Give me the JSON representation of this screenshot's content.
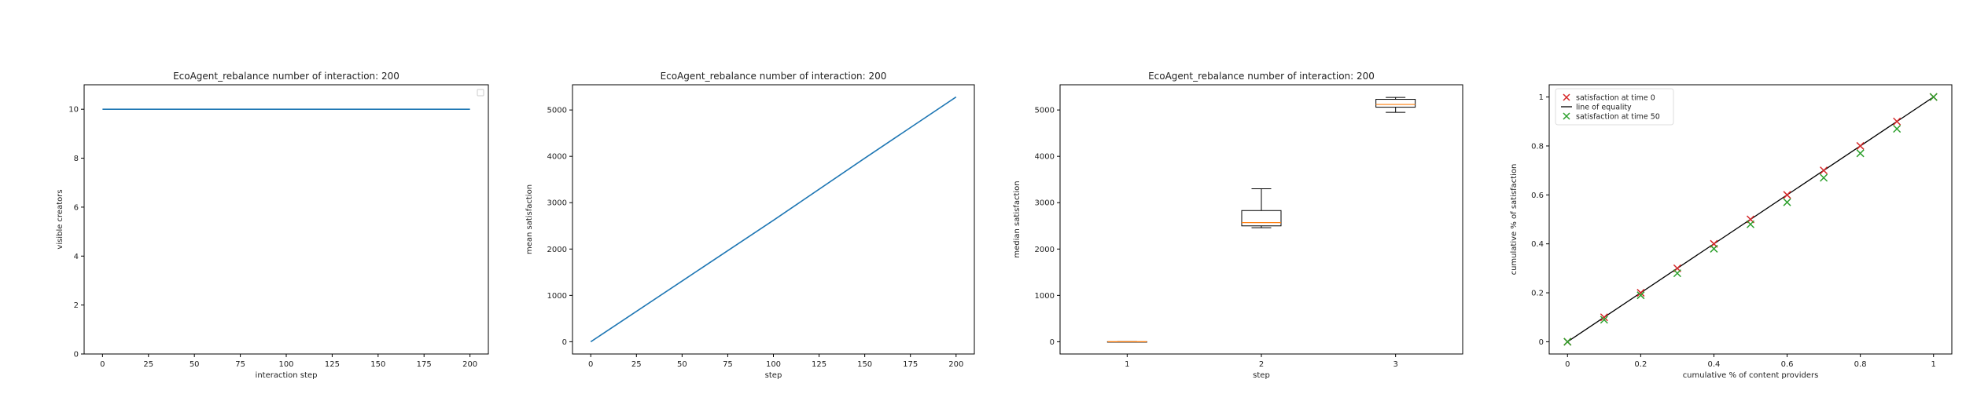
{
  "chart_data": [
    {
      "type": "line",
      "title": "EcoAgent_rebalance number of interaction: 200",
      "xlabel": "interaction step",
      "ylabel": "visible creators",
      "xlim": [
        -10,
        210
      ],
      "ylim": [
        0,
        11
      ],
      "xticks": [
        0,
        25,
        50,
        75,
        100,
        125,
        150,
        175,
        200
      ],
      "yticks": [
        0,
        2,
        4,
        6,
        8,
        10
      ],
      "series": [
        {
          "x": [
            0,
            200
          ],
          "y": [
            10,
            10
          ],
          "color": "#1f77b4"
        }
      ],
      "legend": {
        "placement": "top-right",
        "entries": []
      }
    },
    {
      "type": "line",
      "title": "EcoAgent_rebalance number of interaction: 200",
      "xlabel": "step",
      "ylabel": "mean satisfaction",
      "xlim": [
        -10,
        210
      ],
      "ylim": [
        -264,
        5544
      ],
      "xticks": [
        0,
        25,
        50,
        75,
        100,
        125,
        150,
        175,
        200
      ],
      "yticks": [
        0,
        1000,
        2000,
        3000,
        4000,
        5000
      ],
      "series": [
        {
          "x": [
            0,
            50,
            100,
            150,
            200
          ],
          "y": [
            0,
            1310,
            2620,
            3960,
            5280
          ],
          "color": "#1f77b4"
        }
      ]
    },
    {
      "type": "box",
      "title": "EcoAgent_rebalance number of interaction: 200",
      "xlabel": "step",
      "ylabel": "median satisfaction",
      "ylim": [
        -264,
        5544
      ],
      "categories": [
        "1",
        "2",
        "3"
      ],
      "yticks": [
        0,
        1000,
        2000,
        3000,
        4000,
        5000
      ],
      "boxes": [
        {
          "whislo": 0,
          "q1": 0,
          "med": 0,
          "q3": 0,
          "whishi": 0
        },
        {
          "whislo": 2460,
          "q1": 2500,
          "med": 2570,
          "q3": 2830,
          "whishi": 3300
        },
        {
          "whislo": 4950,
          "q1": 5060,
          "med": 5120,
          "q3": 5230,
          "whishi": 5270
        }
      ],
      "box_color": "#000000",
      "median_color": "#ff7f0e"
    },
    {
      "type": "scatter",
      "xlabel": "cumulative % of content providers",
      "ylabel": "cumulative % of satisfaction",
      "xlim": [
        -0.05,
        1.05
      ],
      "ylim": [
        -0.05,
        1.05
      ],
      "xticks": [
        0.0,
        0.2,
        0.4,
        0.6,
        0.8,
        1.0
      ],
      "yticks": [
        0.0,
        0.2,
        0.4,
        0.6,
        0.8,
        1.0
      ],
      "line": {
        "name": "line of equality",
        "x": [
          0,
          1
        ],
        "y": [
          0,
          1
        ],
        "color": "#000000"
      },
      "series": [
        {
          "name": "satisfaction at time 0",
          "color": "#d62728",
          "marker": "x",
          "x": [
            0.0,
            0.1,
            0.2,
            0.3,
            0.4,
            0.5,
            0.6,
            0.7,
            0.8,
            0.9,
            1.0
          ],
          "y": [
            0.0,
            0.1,
            0.2,
            0.3,
            0.4,
            0.5,
            0.6,
            0.7,
            0.8,
            0.9,
            1.0
          ]
        },
        {
          "name": "satisfaction at time 50",
          "color": "#2ca02c",
          "marker": "x",
          "x": [
            0.0,
            0.1,
            0.2,
            0.3,
            0.4,
            0.5,
            0.6,
            0.7,
            0.8,
            0.9,
            1.0
          ],
          "y": [
            0.0,
            0.09,
            0.19,
            0.28,
            0.38,
            0.48,
            0.57,
            0.67,
            0.77,
            0.87,
            1.0
          ]
        }
      ],
      "legend": {
        "placement": "top-left"
      }
    }
  ]
}
